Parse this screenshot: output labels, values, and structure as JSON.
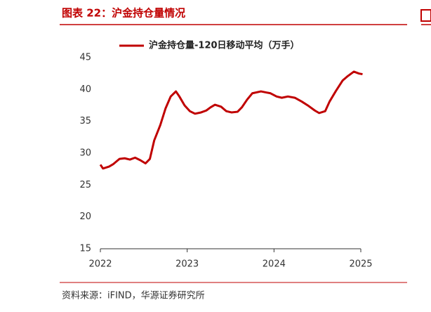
{
  "chart_data": {
    "type": "line",
    "title": "图表 22：沪金持仓量情况",
    "source": "资料来源：iFIND，华源证券研究所",
    "x": [
      2022.0,
      2022.03,
      2022.1,
      2022.15,
      2022.22,
      2022.28,
      2022.34,
      2022.4,
      2022.46,
      2022.52,
      2022.57,
      2022.62,
      2022.69,
      2022.75,
      2022.81,
      2022.87,
      2022.91,
      2022.97,
      2023.03,
      2023.09,
      2023.16,
      2023.22,
      2023.27,
      2023.32,
      2023.39,
      2023.45,
      2023.51,
      2023.58,
      2023.63,
      2023.69,
      2023.75,
      2023.85,
      2023.96,
      2024.03,
      2024.09,
      2024.16,
      2024.24,
      2024.32,
      2024.4,
      2024.47,
      2024.52,
      2024.59,
      2024.64,
      2024.71,
      2024.79,
      2024.85,
      2024.92,
      2024.98,
      2025.02
    ],
    "series": [
      {
        "name": "沪金持仓量-120日移动平均（万手）",
        "color": "#c00000",
        "values": [
          28.2,
          27.6,
          27.9,
          28.3,
          29.1,
          29.2,
          29.0,
          29.3,
          28.9,
          28.4,
          29.1,
          32.0,
          34.4,
          37.0,
          38.9,
          39.7,
          38.9,
          37.5,
          36.6,
          36.2,
          36.4,
          36.7,
          37.2,
          37.6,
          37.3,
          36.6,
          36.4,
          36.5,
          37.2,
          38.4,
          39.4,
          39.7,
          39.4,
          38.9,
          38.7,
          38.9,
          38.7,
          38.1,
          37.4,
          36.7,
          36.3,
          36.6,
          38.1,
          39.7,
          41.4,
          42.1,
          42.8,
          42.5,
          42.4
        ]
      }
    ],
    "xlim": [
      2022,
      2025
    ],
    "xticks": [
      2022,
      2023,
      2024,
      2025
    ],
    "ylim": [
      15,
      45
    ],
    "yticks": [
      15,
      20,
      25,
      30,
      35,
      40,
      45
    ],
    "legend": "top"
  }
}
